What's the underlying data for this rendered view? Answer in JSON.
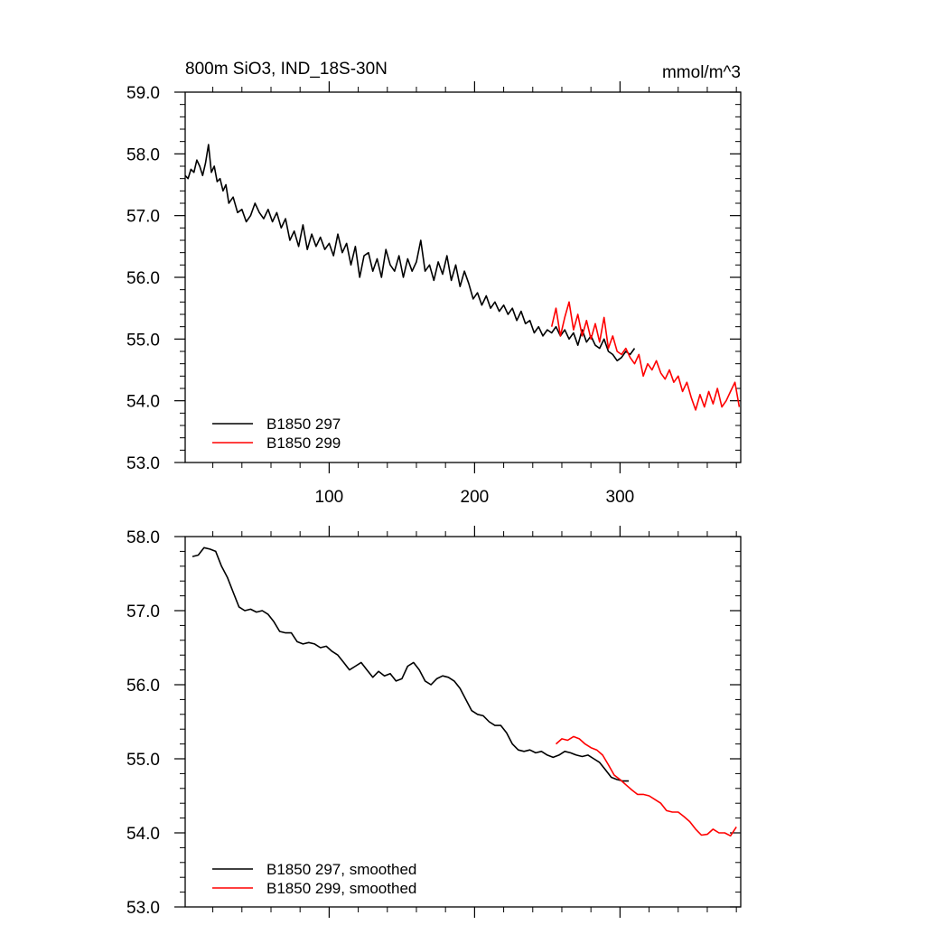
{
  "chart_data": [
    {
      "type": "line",
      "title": "800m SiO3, IND_18S-30N",
      "units": "mmol/m^3",
      "xlabel": "",
      "ylabel": "",
      "xlim": [
        1,
        383
      ],
      "ylim": [
        53.0,
        59.0
      ],
      "x_ticks": [
        100,
        200,
        300
      ],
      "y_ticks": [
        "53.0",
        "54.0",
        "55.0",
        "56.0",
        "57.0",
        "58.0",
        "59.0"
      ],
      "legend_position": "bottom-left",
      "series": [
        {
          "name": "B1850 297",
          "color": "#000000",
          "x": [
            1,
            3,
            5,
            7,
            9,
            11,
            13,
            15,
            17,
            19,
            21,
            23,
            25,
            27,
            29,
            31,
            34,
            37,
            40,
            43,
            46,
            49,
            52,
            55,
            58,
            61,
            64,
            67,
            70,
            73,
            76,
            79,
            82,
            85,
            88,
            91,
            94,
            97,
            100,
            103,
            106,
            109,
            112,
            115,
            118,
            121,
            124,
            127,
            130,
            133,
            136,
            139,
            142,
            145,
            148,
            151,
            154,
            157,
            160,
            163,
            166,
            169,
            172,
            175,
            178,
            181,
            184,
            187,
            190,
            193,
            196,
            199,
            202,
            205,
            208,
            211,
            214,
            217,
            220,
            223,
            226,
            229,
            232,
            235,
            238,
            241,
            244,
            247,
            250,
            253,
            256,
            259,
            262,
            265,
            268,
            271,
            274,
            277,
            280,
            283,
            286,
            289,
            292,
            295,
            298,
            301,
            304,
            307,
            310
          ],
          "values": [
            57.65,
            57.6,
            57.75,
            57.7,
            57.9,
            57.8,
            57.65,
            57.85,
            58.15,
            57.7,
            57.8,
            57.55,
            57.6,
            57.4,
            57.5,
            57.2,
            57.3,
            57.05,
            57.1,
            56.9,
            57.0,
            57.2,
            57.05,
            56.95,
            57.1,
            56.9,
            57.05,
            56.8,
            56.95,
            56.6,
            56.75,
            56.5,
            56.85,
            56.45,
            56.7,
            56.5,
            56.65,
            56.45,
            56.55,
            56.35,
            56.7,
            56.4,
            56.55,
            56.2,
            56.5,
            56.0,
            56.35,
            56.4,
            56.1,
            56.3,
            56.0,
            56.45,
            56.2,
            56.1,
            56.35,
            56.0,
            56.3,
            56.1,
            56.25,
            56.6,
            56.1,
            56.2,
            55.95,
            56.25,
            56.05,
            56.35,
            55.95,
            56.2,
            55.85,
            56.1,
            55.9,
            55.65,
            55.75,
            55.55,
            55.7,
            55.5,
            55.6,
            55.45,
            55.55,
            55.4,
            55.5,
            55.3,
            55.45,
            55.25,
            55.3,
            55.1,
            55.2,
            55.05,
            55.15,
            55.1,
            55.2,
            55.05,
            55.15,
            55.0,
            55.1,
            54.9,
            55.15,
            54.95,
            55.05,
            54.9,
            54.85,
            55.0,
            54.8,
            54.75,
            54.65,
            54.7,
            54.8,
            54.75,
            54.85
          ]
        },
        {
          "name": "B1850 299",
          "color": "#ff0000",
          "x": [
            253,
            256,
            259,
            262,
            265,
            268,
            271,
            274,
            277,
            280,
            283,
            286,
            289,
            292,
            295,
            298,
            301,
            304,
            307,
            310,
            313,
            316,
            319,
            322,
            325,
            328,
            331,
            334,
            337,
            340,
            343,
            346,
            349,
            352,
            355,
            358,
            361,
            364,
            367,
            370,
            373,
            376,
            379,
            382
          ],
          "values": [
            55.2,
            55.5,
            55.05,
            55.35,
            55.6,
            55.15,
            55.4,
            55.05,
            55.3,
            55.0,
            55.25,
            54.95,
            55.35,
            54.85,
            55.05,
            54.8,
            54.75,
            54.85,
            54.7,
            54.6,
            54.75,
            54.4,
            54.6,
            54.5,
            54.65,
            54.45,
            54.35,
            54.5,
            54.3,
            54.4,
            54.15,
            54.3,
            54.05,
            53.85,
            54.1,
            53.9,
            54.15,
            53.95,
            54.2,
            53.9,
            54.0,
            54.15,
            54.3,
            53.9
          ]
        }
      ]
    },
    {
      "type": "line",
      "title": "",
      "xlabel": "",
      "ylabel": "",
      "xlim": [
        1,
        383
      ],
      "ylim": [
        53.0,
        58.0
      ],
      "x_ticks": [
        100,
        200,
        300
      ],
      "y_ticks": [
        "53.0",
        "54.0",
        "55.0",
        "56.0",
        "57.0",
        "58.0"
      ],
      "legend_position": "bottom-left",
      "series": [
        {
          "name": "B1850 297, smoothed",
          "color": "#000000",
          "x": [
            6,
            10,
            14,
            18,
            22,
            26,
            30,
            34,
            38,
            42,
            46,
            50,
            54,
            58,
            62,
            66,
            70,
            74,
            78,
            82,
            86,
            90,
            94,
            98,
            102,
            106,
            110,
            114,
            118,
            122,
            126,
            130,
            134,
            138,
            142,
            146,
            150,
            154,
            158,
            162,
            166,
            170,
            174,
            178,
            182,
            186,
            190,
            194,
            198,
            202,
            206,
            210,
            214,
            218,
            222,
            226,
            230,
            234,
            238,
            242,
            246,
            250,
            254,
            258,
            262,
            266,
            270,
            274,
            278,
            282,
            286,
            290,
            294,
            298,
            302,
            306
          ],
          "values": [
            57.73,
            57.75,
            57.85,
            57.83,
            57.8,
            57.6,
            57.45,
            57.25,
            57.05,
            57.0,
            57.02,
            56.98,
            57.0,
            56.95,
            56.85,
            56.72,
            56.7,
            56.7,
            56.58,
            56.55,
            56.57,
            56.55,
            56.5,
            56.52,
            56.45,
            56.4,
            56.3,
            56.2,
            56.25,
            56.3,
            56.2,
            56.1,
            56.18,
            56.12,
            56.15,
            56.05,
            56.08,
            56.25,
            56.3,
            56.2,
            56.05,
            56.0,
            56.08,
            56.12,
            56.1,
            56.05,
            55.95,
            55.8,
            55.65,
            55.6,
            55.58,
            55.5,
            55.45,
            55.45,
            55.35,
            55.2,
            55.12,
            55.1,
            55.12,
            55.08,
            55.1,
            55.05,
            55.02,
            55.05,
            55.1,
            55.08,
            55.05,
            55.03,
            55.05,
            55.0,
            54.95,
            54.85,
            54.75,
            54.72,
            54.7,
            54.7
          ]
        },
        {
          "name": "B1850 299, smoothed",
          "color": "#ff0000",
          "x": [
            256,
            260,
            264,
            268,
            272,
            276,
            280,
            284,
            288,
            292,
            296,
            300,
            304,
            308,
            312,
            316,
            320,
            324,
            328,
            332,
            336,
            340,
            344,
            348,
            352,
            356,
            360,
            364,
            368,
            372,
            376,
            380
          ],
          "values": [
            55.2,
            55.27,
            55.25,
            55.3,
            55.27,
            55.2,
            55.15,
            55.12,
            55.05,
            54.92,
            54.78,
            54.72,
            54.65,
            54.58,
            54.52,
            54.52,
            54.5,
            54.45,
            54.4,
            54.3,
            54.28,
            54.28,
            54.22,
            54.15,
            54.05,
            53.97,
            53.98,
            54.05,
            54.0,
            54.0,
            53.96,
            54.08
          ]
        }
      ]
    }
  ]
}
